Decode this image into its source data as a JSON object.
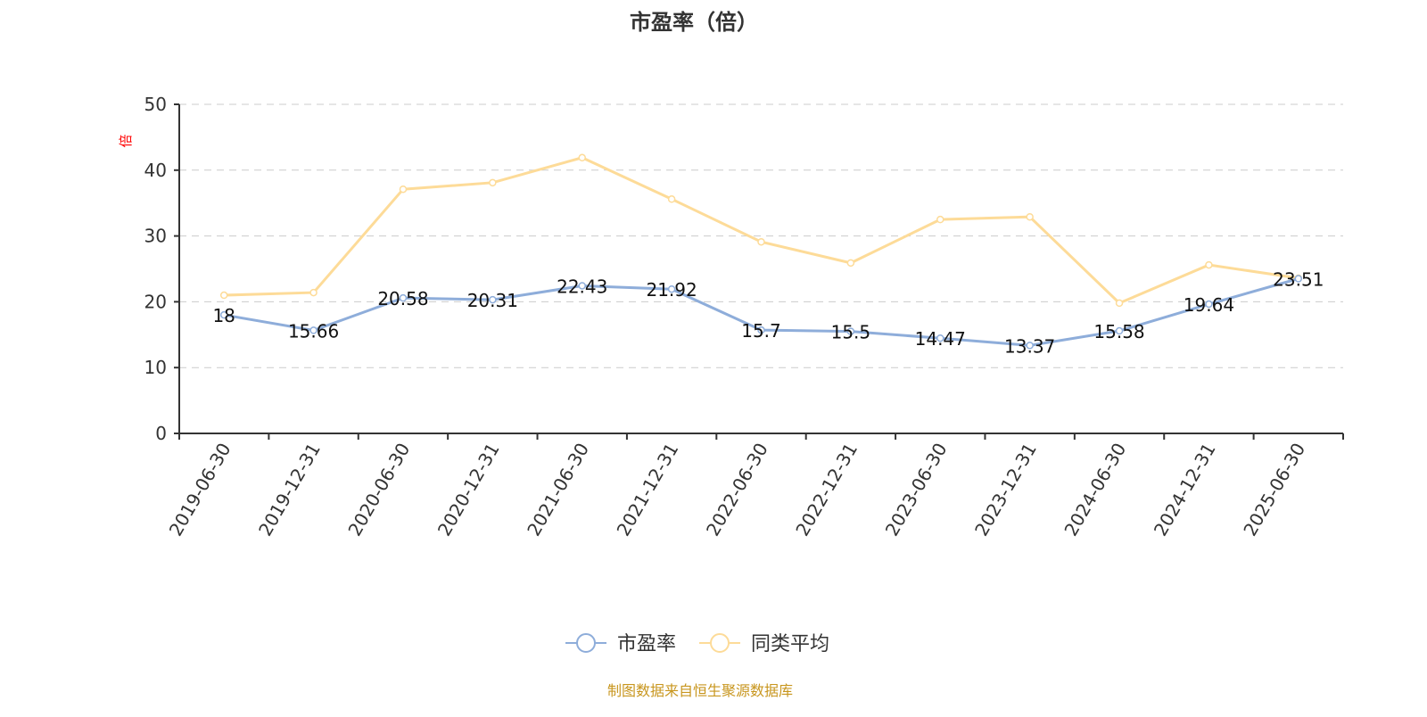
{
  "chart_data": {
    "type": "line",
    "title": "市盈率（倍）",
    "ylabel": "倍",
    "ylim": [
      0,
      50
    ],
    "yticks": [
      0,
      10,
      20,
      30,
      40,
      50
    ],
    "grid": true,
    "legend_position": "bottom",
    "categories": [
      "2019-06-30",
      "2019-12-31",
      "2020-06-30",
      "2020-12-31",
      "2021-06-30",
      "2021-12-31",
      "2022-06-30",
      "2022-12-31",
      "2023-06-30",
      "2023-12-31",
      "2024-06-30",
      "2024-12-31",
      "2025-06-30"
    ],
    "series": [
      {
        "name": "市盈率",
        "color": "#8eadda",
        "labels": true,
        "values": [
          18,
          15.66,
          20.58,
          20.31,
          22.43,
          21.92,
          15.7,
          15.5,
          14.47,
          13.37,
          15.58,
          19.64,
          23.51
        ]
      },
      {
        "name": "同类平均",
        "color": "#fddb98",
        "labels": false,
        "values": [
          21.0,
          21.4,
          37.1,
          38.1,
          41.9,
          35.6,
          29.1,
          25.9,
          32.5,
          32.9,
          19.8,
          25.6,
          23.6
        ]
      }
    ]
  },
  "footer": {
    "source": "制图数据来自恒生聚源数据库",
    "color": "#c8961e"
  },
  "ylabel_color": "#ff0000"
}
